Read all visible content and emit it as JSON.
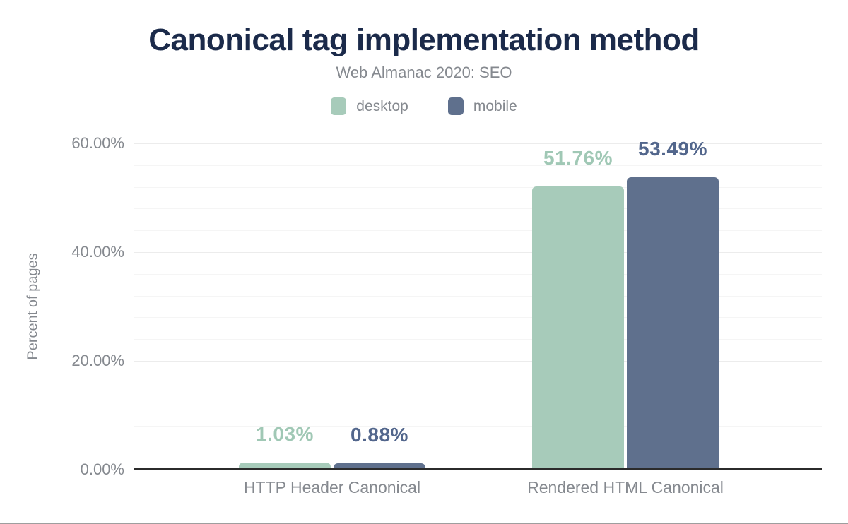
{
  "page": {
    "bottom_border_color": "#9e9e9e",
    "background": "#ffffff"
  },
  "chart_data": {
    "type": "bar",
    "title": "Canonical tag implementation method",
    "subtitle": "Web Almanac 2020: SEO",
    "ylabel": "Percent of pages",
    "xlabel": "",
    "categories": [
      "HTTP Header Canonical",
      "Rendered HTML Canonical"
    ],
    "series": [
      {
        "name": "desktop",
        "values": [
          1.03,
          51.76
        ],
        "data_labels": [
          "1.03%",
          "51.76%"
        ],
        "bar_color": "#a7cbba",
        "label_color": "#a0c8b5"
      },
      {
        "name": "mobile",
        "values": [
          0.88,
          53.49
        ],
        "data_labels": [
          "0.88%",
          "53.49%"
        ],
        "bar_color": "#5f708d",
        "label_color": "#52668c"
      }
    ],
    "ylim": [
      0,
      60
    ],
    "ytick_values": [
      0,
      20,
      40,
      60
    ],
    "ytick_labels": [
      "0.00%",
      "20.00%",
      "40.00%",
      "60.00%"
    ],
    "minor_grid_step": 4,
    "grid": "horizontal",
    "legend_position": "top",
    "colors": {
      "title": "#1b2a4a",
      "text_gray": "#85898f",
      "axis_line": "#2b2b2b",
      "grid_major": "#ececec",
      "grid_minor": "#f5f5f5"
    }
  }
}
